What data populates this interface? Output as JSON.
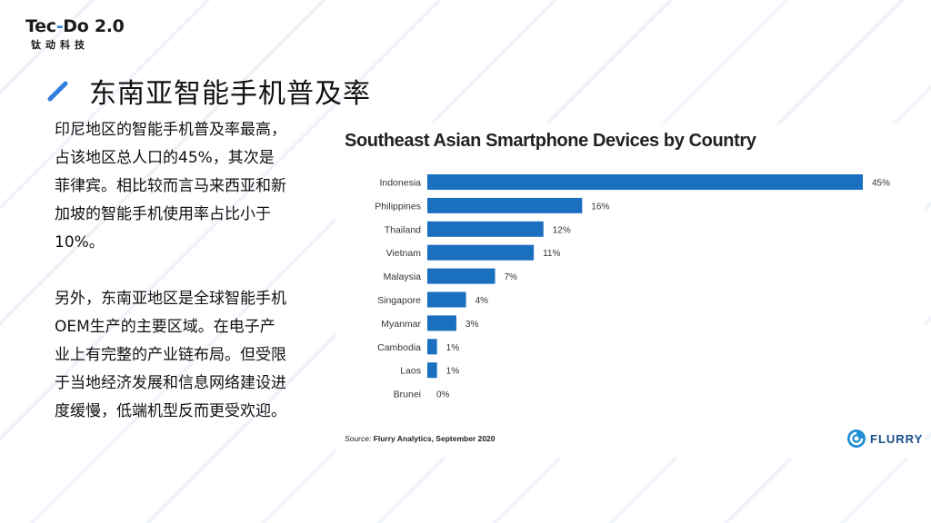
{
  "logo": {
    "main_left": "Tec",
    "main_dash": "-",
    "main_right": "Do 2.0",
    "sub": "钛动科技"
  },
  "page_title": "东南亚智能手机普及率",
  "body_paragraphs": [
    [
      "印尼地区的智能手机普及率最高，",
      "占该地区总人口的45%，其次是",
      "菲律宾。相比较而言马来西亚和新",
      "加坡的智能手机使用率占比小于",
      "10%。"
    ],
    [
      "另外，东南亚地区是全球智能手机",
      "OEM生产的主要区域。在电子产",
      "业上有完整的产业链布局。但受限",
      "于当地经济发展和信息网络建设进",
      "度缓慢，低端机型反而更受欢迎。"
    ]
  ],
  "chart_data": {
    "type": "bar",
    "orientation": "horizontal",
    "title": "Southeast Asian Smartphone Devices by  Country",
    "categories": [
      "Indonesia",
      "Philippines",
      "Thailand",
      "Vietnam",
      "Malaysia",
      "Singapore",
      "Myanmar",
      "Cambodia",
      "Laos",
      "Brunei"
    ],
    "values": [
      45,
      16,
      12,
      11,
      7,
      4,
      3,
      1,
      1,
      0
    ],
    "value_labels": [
      "45%",
      "16%",
      "12%",
      "11%",
      "7%",
      "4%",
      "3%",
      "1%",
      "1%",
      "0%"
    ],
    "xlim": [
      0,
      45
    ],
    "grid": false,
    "bar_color": "#1a6fbf",
    "source_label": "Source:",
    "source_text": " Flurry Analytics, September 2020"
  },
  "brand": {
    "name": "FLURRY",
    "icon": "flurry-logo-icon"
  },
  "colors": {
    "accent": "#2f7de1",
    "bar": "#1a6fbf"
  }
}
